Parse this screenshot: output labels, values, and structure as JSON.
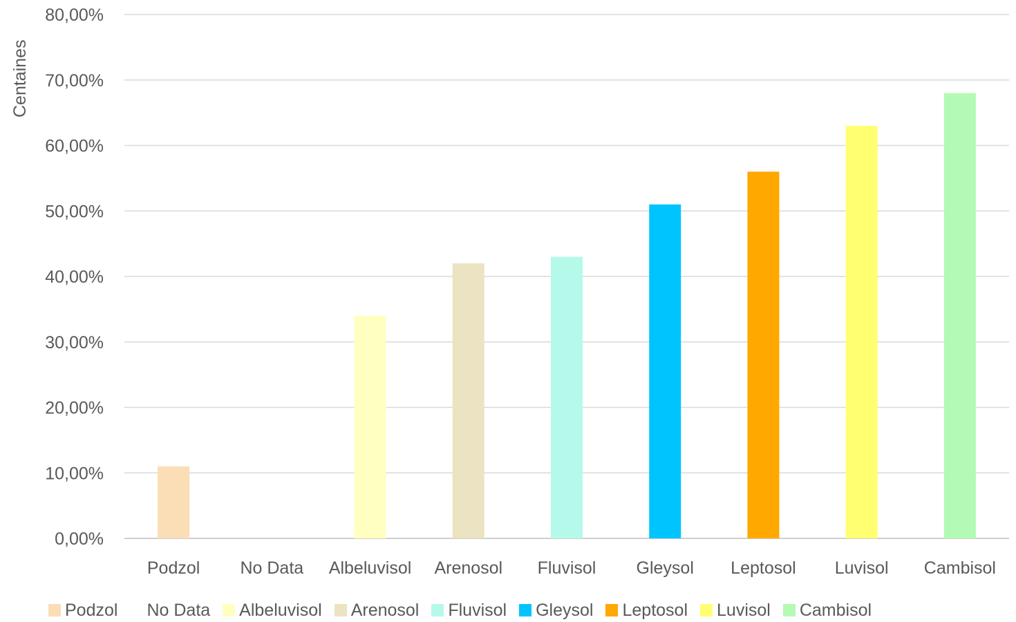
{
  "chart_data": {
    "type": "bar",
    "ylabel": "Centaines",
    "ylim": [
      0,
      80
    ],
    "y_tick_values": [
      0,
      10,
      20,
      30,
      40,
      50,
      60,
      70,
      80
    ],
    "y_tick_labels": [
      "0,00%",
      "10,00%",
      "20,00%",
      "30,00%",
      "40,00%",
      "50,00%",
      "60,00%",
      "70,00%",
      "80,00%"
    ],
    "categories": [
      "Podzol",
      "No Data",
      "Albeluvisol",
      "Arenosol",
      "Fluvisol",
      "Gleysol",
      "Leptosol",
      "Luvisol",
      "Cambisol"
    ],
    "values": [
      11,
      0,
      34,
      42,
      43,
      51,
      56,
      63,
      68
    ],
    "colors": [
      "#FBDDB6",
      "#FFFFFF",
      "#FFFFC0",
      "#EBE3C1",
      "#B5F9EA",
      "#00C4FE",
      "#FEA800",
      "#FFFF71",
      "#B3FAB5"
    ],
    "grid": true,
    "legend_position": "bottom"
  }
}
